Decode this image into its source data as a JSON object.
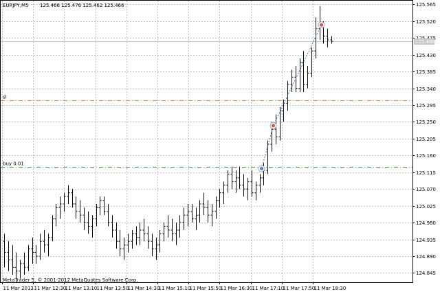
{
  "header": {
    "symbol_timeframe": "EURJPY,M5",
    "ohlc": "125.466 125.476 125.462 125.466"
  },
  "copyright": "MetaTrader 5, © 2001-2012 MetaQuotes Software Corp.",
  "current_price_label": "125.466",
  "trade_lines": [
    {
      "label": "sl",
      "price": 125.308,
      "color": "#e8894a"
    },
    {
      "label": "buy 0.01",
      "price": 125.13,
      "color": "#3aa83a"
    }
  ],
  "trade_markers": [
    {
      "name": "entry-marker",
      "price": 125.125,
      "icon": "circle-marker-icon",
      "color": "#4a7fc0"
    },
    {
      "name": "mid-marker",
      "price": 125.24,
      "icon": "circle-marker-icon",
      "color": "#d9534f"
    },
    {
      "name": "exit-marker",
      "price": 125.51,
      "icon": "circle-marker-icon",
      "color": "#d9534f"
    }
  ],
  "colors": {
    "grid": "#c0c0c0",
    "bars": "#000000",
    "axis": "#000000",
    "current_price_line": "#c8c8c8",
    "trade_path": "#3a7bbf"
  },
  "chart_data": {
    "type": "bar",
    "subtype": "ohlc",
    "y_ticks": [
      "125.565",
      "125.520",
      "125.475",
      "125.430",
      "125.385",
      "125.340",
      "125.295",
      "125.250",
      "125.205",
      "125.160",
      "125.115",
      "125.070",
      "125.025",
      "124.980",
      "124.935",
      "124.890",
      "124.845"
    ],
    "x_ticks": [
      "11 Mar 2013",
      "11 Mar 12:30",
      "11 Mar 13:10",
      "11 Mar 13:50",
      "11 Mar 14:30",
      "11 Mar 15:10",
      "11 Mar 15:50",
      "11 Mar 16:30",
      "11 Mar 17:10",
      "11 Mar 17:50",
      "11 Mar 18:30"
    ],
    "ylim": [
      124.82,
      125.575
    ],
    "grid": true,
    "bars": [
      {
        "o": 124.93,
        "h": 124.95,
        "l": 124.86,
        "c": 124.9
      },
      {
        "o": 124.9,
        "h": 124.93,
        "l": 124.85,
        "c": 124.88
      },
      {
        "o": 124.88,
        "h": 124.92,
        "l": 124.84,
        "c": 124.86
      },
      {
        "o": 124.86,
        "h": 124.9,
        "l": 124.82,
        "c": 124.85
      },
      {
        "o": 124.85,
        "h": 124.88,
        "l": 124.83,
        "c": 124.87
      },
      {
        "o": 124.87,
        "h": 124.9,
        "l": 124.84,
        "c": 124.86
      },
      {
        "o": 124.86,
        "h": 124.92,
        "l": 124.85,
        "c": 124.91
      },
      {
        "o": 124.91,
        "h": 124.94,
        "l": 124.87,
        "c": 124.9
      },
      {
        "o": 124.9,
        "h": 124.92,
        "l": 124.87,
        "c": 124.89
      },
      {
        "o": 124.89,
        "h": 124.95,
        "l": 124.88,
        "c": 124.93
      },
      {
        "o": 124.93,
        "h": 124.96,
        "l": 124.9,
        "c": 124.92
      },
      {
        "o": 124.92,
        "h": 124.95,
        "l": 124.89,
        "c": 124.94
      },
      {
        "o": 124.94,
        "h": 125.0,
        "l": 124.93,
        "c": 124.99
      },
      {
        "o": 124.99,
        "h": 125.03,
        "l": 124.97,
        "c": 125.02
      },
      {
        "o": 125.02,
        "h": 125.05,
        "l": 124.99,
        "c": 125.03
      },
      {
        "o": 125.03,
        "h": 125.06,
        "l": 125.01,
        "c": 125.05
      },
      {
        "o": 125.05,
        "h": 125.08,
        "l": 125.03,
        "c": 125.06
      },
      {
        "o": 125.06,
        "h": 125.07,
        "l": 125.02,
        "c": 125.03
      },
      {
        "o": 125.03,
        "h": 125.05,
        "l": 124.99,
        "c": 125.01
      },
      {
        "o": 125.01,
        "h": 125.04,
        "l": 124.98,
        "c": 125.0
      },
      {
        "o": 125.0,
        "h": 125.02,
        "l": 124.96,
        "c": 124.98
      },
      {
        "o": 124.98,
        "h": 125.01,
        "l": 124.95,
        "c": 124.97
      },
      {
        "o": 124.97,
        "h": 125.0,
        "l": 124.94,
        "c": 124.99
      },
      {
        "o": 124.99,
        "h": 125.03,
        "l": 124.97,
        "c": 125.02
      },
      {
        "o": 125.02,
        "h": 125.05,
        "l": 125.0,
        "c": 125.04
      },
      {
        "o": 125.04,
        "h": 125.05,
        "l": 125.0,
        "c": 125.01
      },
      {
        "o": 125.01,
        "h": 125.03,
        "l": 124.97,
        "c": 124.98
      },
      {
        "o": 124.98,
        "h": 125.0,
        "l": 124.94,
        "c": 124.96
      },
      {
        "o": 124.96,
        "h": 124.98,
        "l": 124.91,
        "c": 124.93
      },
      {
        "o": 124.93,
        "h": 124.96,
        "l": 124.89,
        "c": 124.91
      },
      {
        "o": 124.91,
        "h": 124.94,
        "l": 124.88,
        "c": 124.92
      },
      {
        "o": 124.92,
        "h": 124.95,
        "l": 124.9,
        "c": 124.93
      },
      {
        "o": 124.93,
        "h": 124.96,
        "l": 124.91,
        "c": 124.95
      },
      {
        "o": 124.95,
        "h": 124.97,
        "l": 124.92,
        "c": 124.94
      },
      {
        "o": 124.94,
        "h": 124.98,
        "l": 124.92,
        "c": 124.96
      },
      {
        "o": 124.96,
        "h": 124.99,
        "l": 124.93,
        "c": 124.95
      },
      {
        "o": 124.95,
        "h": 124.97,
        "l": 124.91,
        "c": 124.93
      },
      {
        "o": 124.93,
        "h": 124.95,
        "l": 124.89,
        "c": 124.91
      },
      {
        "o": 124.91,
        "h": 124.94,
        "l": 124.88,
        "c": 124.92
      },
      {
        "o": 124.92,
        "h": 124.96,
        "l": 124.9,
        "c": 124.95
      },
      {
        "o": 124.95,
        "h": 124.98,
        "l": 124.93,
        "c": 124.97
      },
      {
        "o": 124.97,
        "h": 125.0,
        "l": 124.94,
        "c": 124.96
      },
      {
        "o": 124.96,
        "h": 124.99,
        "l": 124.93,
        "c": 124.95
      },
      {
        "o": 124.95,
        "h": 124.98,
        "l": 124.92,
        "c": 124.96
      },
      {
        "o": 124.96,
        "h": 125.0,
        "l": 124.94,
        "c": 124.98
      },
      {
        "o": 124.98,
        "h": 125.02,
        "l": 124.96,
        "c": 125.0
      },
      {
        "o": 125.0,
        "h": 125.03,
        "l": 124.97,
        "c": 125.01
      },
      {
        "o": 125.01,
        "h": 125.03,
        "l": 124.98,
        "c": 124.99
      },
      {
        "o": 124.99,
        "h": 125.02,
        "l": 124.96,
        "c": 125.0
      },
      {
        "o": 125.0,
        "h": 125.04,
        "l": 124.98,
        "c": 125.03
      },
      {
        "o": 125.03,
        "h": 125.06,
        "l": 125.0,
        "c": 125.02
      },
      {
        "o": 125.02,
        "h": 125.04,
        "l": 124.98,
        "c": 125.0
      },
      {
        "o": 125.0,
        "h": 125.03,
        "l": 124.97,
        "c": 125.01
      },
      {
        "o": 125.01,
        "h": 125.05,
        "l": 124.99,
        "c": 125.04
      },
      {
        "o": 125.04,
        "h": 125.07,
        "l": 125.02,
        "c": 125.06
      },
      {
        "o": 125.06,
        "h": 125.09,
        "l": 125.03,
        "c": 125.08
      },
      {
        "o": 125.08,
        "h": 125.12,
        "l": 125.06,
        "c": 125.11
      },
      {
        "o": 125.11,
        "h": 125.13,
        "l": 125.07,
        "c": 125.09
      },
      {
        "o": 125.09,
        "h": 125.12,
        "l": 125.06,
        "c": 125.1
      },
      {
        "o": 125.1,
        "h": 125.13,
        "l": 125.07,
        "c": 125.08
      },
      {
        "o": 125.08,
        "h": 125.11,
        "l": 125.05,
        "c": 125.07
      },
      {
        "o": 125.07,
        "h": 125.1,
        "l": 125.04,
        "c": 125.09
      },
      {
        "o": 125.09,
        "h": 125.12,
        "l": 125.05,
        "c": 125.06
      },
      {
        "o": 125.06,
        "h": 125.09,
        "l": 125.04,
        "c": 125.08
      },
      {
        "o": 125.08,
        "h": 125.11,
        "l": 125.06,
        "c": 125.1
      },
      {
        "o": 125.1,
        "h": 125.14,
        "l": 125.08,
        "c": 125.12
      },
      {
        "o": 125.12,
        "h": 125.2,
        "l": 125.11,
        "c": 125.19
      },
      {
        "o": 125.19,
        "h": 125.25,
        "l": 125.17,
        "c": 125.23
      },
      {
        "o": 125.23,
        "h": 125.27,
        "l": 125.19,
        "c": 125.21
      },
      {
        "o": 125.21,
        "h": 125.29,
        "l": 125.2,
        "c": 125.28
      },
      {
        "o": 125.28,
        "h": 125.31,
        "l": 125.25,
        "c": 125.3
      },
      {
        "o": 125.3,
        "h": 125.36,
        "l": 125.28,
        "c": 125.35
      },
      {
        "o": 125.35,
        "h": 125.39,
        "l": 125.33,
        "c": 125.37
      },
      {
        "o": 125.37,
        "h": 125.4,
        "l": 125.33,
        "c": 125.34
      },
      {
        "o": 125.34,
        "h": 125.42,
        "l": 125.33,
        "c": 125.41
      },
      {
        "o": 125.41,
        "h": 125.44,
        "l": 125.33,
        "c": 125.35
      },
      {
        "o": 125.35,
        "h": 125.4,
        "l": 125.34,
        "c": 125.38
      },
      {
        "o": 125.38,
        "h": 125.45,
        "l": 125.37,
        "c": 125.44
      },
      {
        "o": 125.44,
        "h": 125.53,
        "l": 125.42,
        "c": 125.5
      },
      {
        "o": 125.5,
        "h": 125.56,
        "l": 125.47,
        "c": 125.51
      },
      {
        "o": 125.51,
        "h": 125.52,
        "l": 125.46,
        "c": 125.48
      },
      {
        "o": 125.48,
        "h": 125.5,
        "l": 125.45,
        "c": 125.47
      },
      {
        "o": 125.47,
        "h": 125.48,
        "l": 125.46,
        "c": 125.466
      }
    ]
  }
}
